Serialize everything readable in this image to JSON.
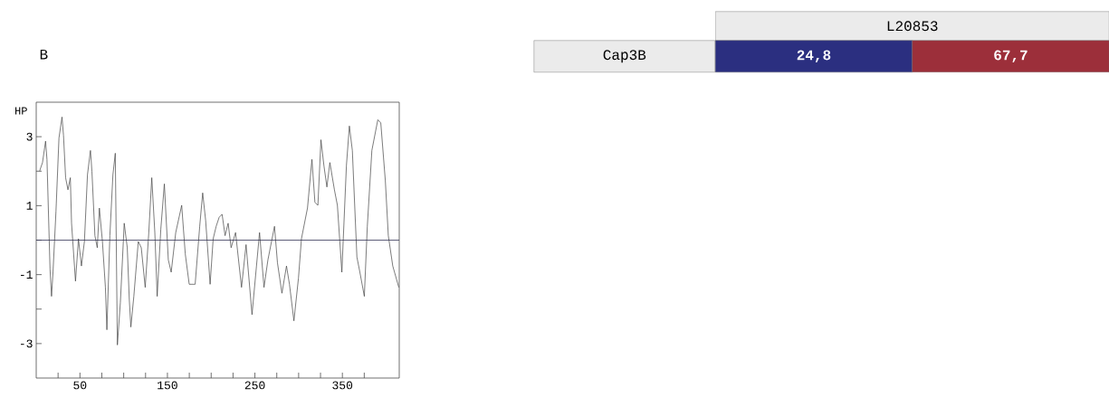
{
  "chart_data": [
    {
      "type": "line",
      "title": "B",
      "ylabel": "HP",
      "x": [
        3.8,
        7.2,
        10.7,
        12.3,
        15.8,
        17.5,
        19.2,
        22.6,
        26,
        29.5,
        31.2,
        33.6,
        36.3,
        39,
        40.4,
        44.9,
        48.3,
        51.7,
        55.1,
        58.6,
        62,
        63.7,
        67.1,
        69.8,
        72.2,
        75.7,
        79.1,
        80.8,
        84.2,
        87.7,
        90.4,
        92.8,
        96.2,
        100.6,
        104.1,
        106.4,
        108.2,
        111.6,
        116.7,
        120.1,
        124.6,
        128.7,
        132.1,
        135.6,
        138.3,
        142.4,
        146.5,
        151,
        154.3,
        159.5,
        166.3,
        170.4,
        174.9,
        181.7,
        186.9,
        190.3,
        193.7,
        198.8,
        202.3,
        205.7,
        209.1,
        212.5,
        215.9,
        219.4,
        222.8,
        227.9,
        234.7,
        239.9,
        246.7,
        251.8,
        255.3,
        260.4,
        264.9,
        272.4,
        275.8,
        280.9,
        286.1,
        289.5,
        294.6,
        299.8,
        303.2,
        310.1,
        315.2,
        318.6,
        322,
        325.5,
        328.9,
        332.3,
        335.7,
        340.9,
        344.3,
        349.4,
        354.6,
        358,
        361.4,
        366.6,
        370,
        375.1,
        378.5,
        383.7,
        390.5,
        393.9,
        399.1,
        402.5,
        407.6,
        414.5
      ],
      "series": [
        {
          "color": "#444444",
          "values": [
            2.0,
            2.25,
            2.87,
            2.34,
            -0.84,
            -1.63,
            -0.93,
            0.84,
            2.96,
            3.57,
            3.04,
            1.81,
            1.46,
            1.81,
            0.49,
            -1.19,
            0.04,
            -0.75,
            -0.04,
            1.9,
            2.6,
            1.99,
            0.13,
            -0.22,
            0.93,
            -0.04,
            -1.37,
            -2.6,
            0.13,
            1.9,
            2.52,
            -3.04,
            -1.81,
            0.49,
            -0.22,
            -1.72,
            -2.52,
            -1.63,
            -0.04,
            -0.22,
            -1.37,
            0.22,
            1.81,
            0.22,
            -1.63,
            0.31,
            1.63,
            -0.57,
            -0.93,
            0.22,
            1.01,
            -0.4,
            -1.28,
            -1.28,
            0.4,
            1.37,
            0.57,
            -1.28,
            0.04,
            0.4,
            0.66,
            0.75,
            0.13,
            0.49,
            -0.22,
            0.22,
            -1.37,
            -0.13,
            -2.16,
            -0.75,
            0.22,
            -1.37,
            -0.57,
            0.4,
            -0.66,
            -1.54,
            -0.75,
            -1.28,
            -2.34,
            -1.1,
            0.04,
            0.93,
            2.34,
            1.1,
            1.01,
            2.91,
            2.16,
            1.54,
            2.25,
            1.46,
            1.01,
            -0.93,
            2.16,
            3.31,
            2.6,
            -0.49,
            -0.93,
            -1.63,
            0.4,
            2.6,
            3.49,
            3.4,
            1.72,
            0.13,
            -0.75,
            -1.37
          ]
        }
      ],
      "xlim": [
        0,
        415
      ],
      "ylim": [
        -4,
        4
      ],
      "xticks": [
        {
          "value": 25,
          "label": null
        },
        50,
        {
          "value": 75,
          "label": null
        },
        {
          "value": 100,
          "label": null
        },
        {
          "value": 125,
          "label": null
        },
        150,
        {
          "value": 175,
          "label": null
        },
        {
          "value": 200,
          "label": null
        },
        {
          "value": 225,
          "label": null
        },
        250,
        {
          "value": 275,
          "label": null
        },
        {
          "value": 300,
          "label": null
        },
        {
          "value": 325,
          "label": null
        },
        350,
        {
          "value": 375,
          "label": null
        }
      ],
      "yticks": [
        -3,
        {
          "value": -2,
          "label": null
        },
        -1,
        {
          "value": 0,
          "label": null
        },
        1,
        {
          "value": 2,
          "label": null
        },
        3
      ],
      "ref_lines": [
        {
          "axis": "y",
          "value": 0,
          "color": "#333355"
        }
      ]
    },
    {
      "type": "other",
      "title": "L20853",
      "annotations": [
        "Cap3B"
      ],
      "categories": [
        "24,8",
        "67,7"
      ],
      "colors": [
        "#2b2f80",
        "#9c2f3a"
      ]
    }
  ]
}
